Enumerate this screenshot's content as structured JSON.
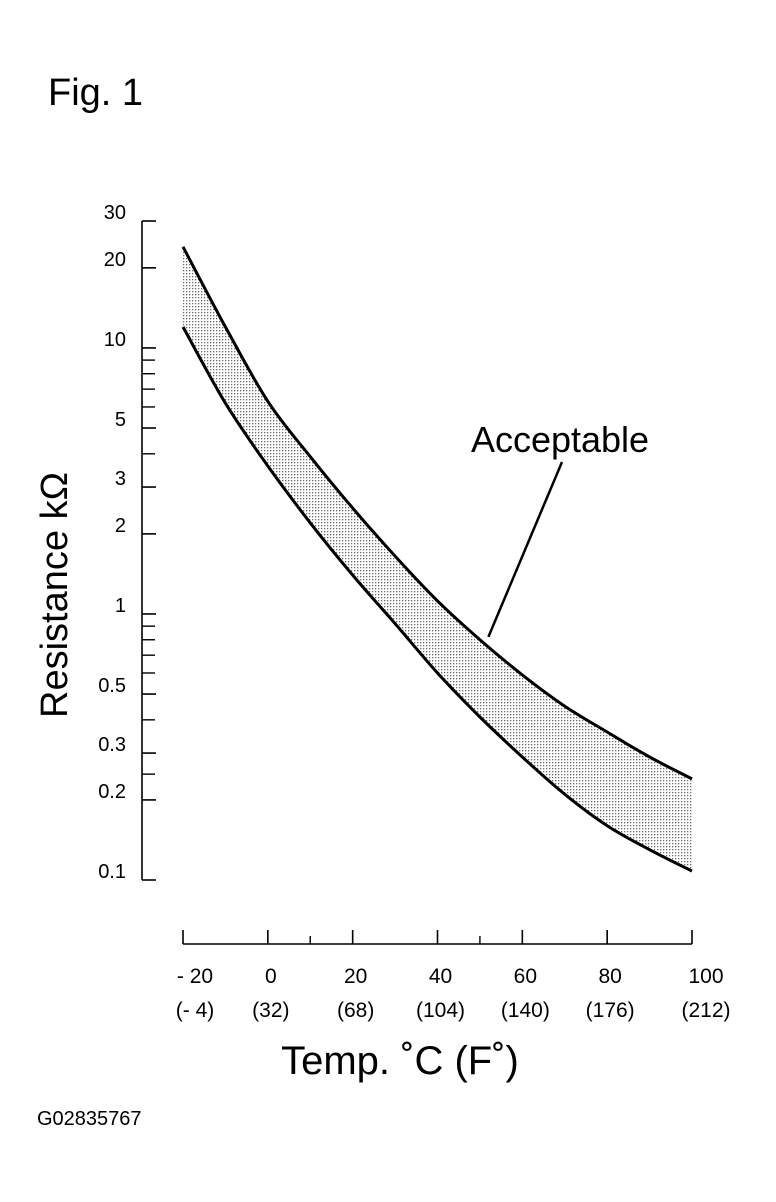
{
  "figure_label": "Fig. 1",
  "figure_code": "G02835767",
  "colors": {
    "ink": "#000000",
    "band_fill": "#c8c8c8",
    "background": "#ffffff"
  },
  "chart_data": {
    "type": "area",
    "title": "",
    "xlabel": "Temp. ˚C (F˚)",
    "ylabel": "Resistance kΩ",
    "y_scale": "log",
    "xlim": [
      -20,
      100
    ],
    "ylim": [
      0.1,
      30
    ],
    "grid": false,
    "x_ticks": [
      {
        "value": -20,
        "label": "- 20",
        "sublabel": "(- 4)"
      },
      {
        "value": 0,
        "label": "0",
        "sublabel": "(32)"
      },
      {
        "value": 20,
        "label": "20",
        "sublabel": "(68)"
      },
      {
        "value": 40,
        "label": "40",
        "sublabel": "(104)"
      },
      {
        "value": 60,
        "label": "60",
        "sublabel": "(140)"
      },
      {
        "value": 80,
        "label": "80",
        "sublabel": "(176)"
      },
      {
        "value": 100,
        "label": "100",
        "sublabel": "(212)"
      }
    ],
    "x_minor_ticks": [
      10,
      50
    ],
    "y_ticks": [
      {
        "value": 30,
        "label": "30"
      },
      {
        "value": 20,
        "label": "20"
      },
      {
        "value": 10,
        "label": "10"
      },
      {
        "value": 5,
        "label": "5"
      },
      {
        "value": 3,
        "label": "3"
      },
      {
        "value": 2,
        "label": "2"
      },
      {
        "value": 1,
        "label": "1"
      },
      {
        "value": 0.5,
        "label": "0.5"
      },
      {
        "value": 0.3,
        "label": "0.3"
      },
      {
        "value": 0.2,
        "label": "0.2"
      },
      {
        "value": 0.1,
        "label": "0.1"
      }
    ],
    "y_minor_ticks": [
      9,
      8,
      7,
      6,
      4,
      0.9,
      0.8,
      0.7,
      0.6,
      0.4,
      0.25
    ],
    "series": [
      {
        "role": "upper_limit",
        "x": [
          -20,
          -10,
          0,
          10,
          20,
          30,
          40,
          50,
          60,
          70,
          80,
          90,
          100
        ],
        "y": [
          24,
          12,
          6.3,
          3.9,
          2.5,
          1.65,
          1.12,
          0.8,
          0.59,
          0.45,
          0.36,
          0.29,
          0.24
        ]
      },
      {
        "role": "lower_limit",
        "x": [
          -20,
          -10,
          0,
          10,
          20,
          30,
          40,
          50,
          60,
          70,
          80,
          90,
          100
        ],
        "y": [
          12,
          6.2,
          3.6,
          2.2,
          1.4,
          0.92,
          0.6,
          0.41,
          0.29,
          0.21,
          0.16,
          0.13,
          0.108
        ]
      }
    ],
    "annotations": [
      {
        "text": "Acceptable",
        "points_to": {
          "x": 52,
          "y": 0.82
        }
      }
    ]
  }
}
